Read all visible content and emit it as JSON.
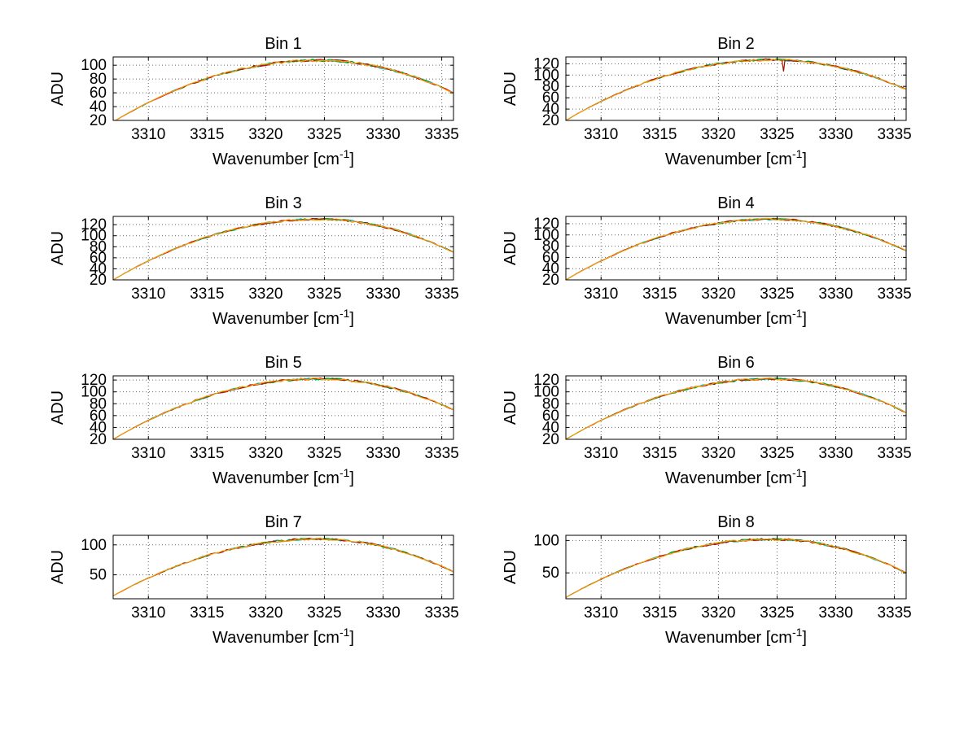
{
  "figure": {
    "background": "#ffffff",
    "axis_color": "#000000",
    "grid_color": "#666666",
    "series_colors": [
      "#303030",
      "#00b7b7",
      "#00a000",
      "#e00000",
      "#ffa000"
    ],
    "noise_adu": 2,
    "ylabel": "ADU",
    "xlabel_main": "Wavenumber [cm",
    "xlabel_sup": "-1",
    "xlabel_close": "]"
  },
  "chart_data": [
    {
      "type": "line",
      "title": "Bin 1",
      "xlabel": "Wavenumber [cm^-1]",
      "ylabel": "ADU",
      "xlim": [
        3307,
        3336
      ],
      "ylim": [
        20,
        112
      ],
      "xticks": [
        3310,
        3315,
        3320,
        3325,
        3330,
        3335
      ],
      "yticks": [
        20,
        40,
        60,
        80,
        100
      ],
      "x": [
        3307,
        3308,
        3309,
        3310,
        3311,
        3312,
        3313,
        3314,
        3315,
        3316,
        3317,
        3318,
        3319,
        3320,
        3321,
        3322,
        3323,
        3324,
        3325,
        3326,
        3327,
        3328,
        3329,
        3330,
        3331,
        3332,
        3333,
        3334,
        3335,
        3336
      ],
      "y": [
        18.0,
        27.9,
        37.2,
        45.9,
        54.0,
        61.6,
        68.6,
        75.0,
        80.8,
        86.0,
        90.7,
        94.7,
        98.2,
        101.1,
        103.4,
        105.2,
        106.3,
        106.9,
        106.9,
        106.2,
        104.8,
        102.6,
        99.8,
        96.2,
        92.0,
        87.0,
        81.3,
        74.9,
        67.8,
        60.0
      ]
    },
    {
      "type": "line",
      "title": "Bin 2",
      "xlabel": "Wavenumber [cm^-1]",
      "ylabel": "ADU",
      "xlim": [
        3307,
        3336
      ],
      "ylim": [
        20,
        132
      ],
      "xticks": [
        3310,
        3315,
        3320,
        3325,
        3330,
        3335
      ],
      "yticks": [
        20,
        40,
        60,
        80,
        100,
        120
      ],
      "spike": {
        "x": 3325.55,
        "depth": 20
      },
      "x": [
        3307,
        3308,
        3309,
        3310,
        3311,
        3312,
        3313,
        3314,
        3315,
        3316,
        3317,
        3318,
        3319,
        3320,
        3321,
        3322,
        3323,
        3324,
        3325,
        3326,
        3327,
        3328,
        3329,
        3330,
        3331,
        3332,
        3333,
        3334,
        3335,
        3336
      ],
      "y": [
        20.0,
        31.9,
        43.1,
        53.5,
        63.2,
        72.4,
        80.9,
        88.5,
        95.5,
        101.7,
        107.4,
        112.2,
        116.4,
        119.9,
        122.7,
        124.9,
        126.1,
        126.9,
        126.9,
        126.1,
        124.6,
        122.1,
        119.0,
        115.0,
        110.4,
        104.8,
        98.6,
        91.5,
        83.6,
        75.0
      ]
    },
    {
      "type": "line",
      "title": "Bin 3",
      "xlabel": "Wavenumber [cm^-1]",
      "ylabel": "ADU",
      "xlim": [
        3307,
        3336
      ],
      "ylim": [
        20,
        135
      ],
      "xticks": [
        3310,
        3315,
        3320,
        3325,
        3330,
        3335
      ],
      "yticks": [
        20,
        40,
        60,
        80,
        100,
        120
      ],
      "x": [
        3307,
        3308,
        3309,
        3310,
        3311,
        3312,
        3313,
        3314,
        3315,
        3316,
        3317,
        3318,
        3319,
        3320,
        3321,
        3322,
        3323,
        3324,
        3325,
        3326,
        3327,
        3328,
        3329,
        3330,
        3331,
        3332,
        3333,
        3334,
        3335,
        3336
      ],
      "y": [
        20.0,
        32.2,
        43.8,
        54.4,
        64.4,
        73.9,
        82.6,
        90.4,
        97.7,
        104.0,
        109.9,
        114.8,
        119.1,
        122.7,
        125.6,
        127.8,
        129.1,
        129.9,
        129.9,
        129.0,
        127.2,
        124.4,
        120.8,
        116.2,
        110.9,
        104.4,
        97.2,
        89.0,
        80.0,
        70.0
      ]
    },
    {
      "type": "line",
      "title": "Bin 4",
      "xlabel": "Wavenumber [cm^-1]",
      "ylabel": "ADU",
      "xlim": [
        3307,
        3336
      ],
      "ylim": [
        20,
        133
      ],
      "xticks": [
        3310,
        3315,
        3320,
        3325,
        3330,
        3335
      ],
      "yticks": [
        20,
        40,
        60,
        80,
        100,
        120
      ],
      "x": [
        3307,
        3308,
        3309,
        3310,
        3311,
        3312,
        3313,
        3314,
        3315,
        3316,
        3317,
        3318,
        3319,
        3320,
        3321,
        3322,
        3323,
        3324,
        3325,
        3326,
        3327,
        3328,
        3329,
        3330,
        3331,
        3332,
        3333,
        3334,
        3335,
        3336
      ],
      "y": [
        20.0,
        32.0,
        43.3,
        53.8,
        63.6,
        72.9,
        81.5,
        89.1,
        96.2,
        102.5,
        108.2,
        113.1,
        117.3,
        120.9,
        123.7,
        125.8,
        127.1,
        127.9,
        127.9,
        127.1,
        125.4,
        122.7,
        119.4,
        115.1,
        110.1,
        104.1,
        97.4,
        89.8,
        81.3,
        72.0
      ]
    },
    {
      "type": "line",
      "title": "Bin 5",
      "xlabel": "Wavenumber [cm^-1]",
      "ylabel": "ADU",
      "xlim": [
        3307,
        3336
      ],
      "ylim": [
        20,
        127
      ],
      "xticks": [
        3310,
        3315,
        3320,
        3325,
        3330,
        3335
      ],
      "yticks": [
        20,
        40,
        60,
        80,
        100,
        120
      ],
      "x": [
        3307,
        3308,
        3309,
        3310,
        3311,
        3312,
        3313,
        3314,
        3315,
        3316,
        3317,
        3318,
        3319,
        3320,
        3321,
        3322,
        3323,
        3324,
        3325,
        3326,
        3327,
        3328,
        3329,
        3330,
        3331,
        3332,
        3333,
        3334,
        3335,
        3336
      ],
      "y": [
        20.0,
        31.3,
        42.0,
        51.9,
        61.2,
        70.0,
        78.0,
        85.3,
        92.0,
        97.9,
        103.3,
        107.9,
        111.9,
        115.3,
        117.9,
        120.0,
        121.2,
        121.9,
        121.9,
        121.1,
        119.6,
        117.1,
        114.0,
        110.0,
        105.4,
        99.8,
        93.6,
        86.5,
        78.6,
        70.0
      ]
    },
    {
      "type": "line",
      "title": "Bin 6",
      "xlabel": "Wavenumber [cm^-1]",
      "ylabel": "ADU",
      "xlim": [
        3307,
        3336
      ],
      "ylim": [
        20,
        127
      ],
      "xticks": [
        3310,
        3315,
        3320,
        3325,
        3330,
        3335
      ],
      "yticks": [
        20,
        40,
        60,
        80,
        100,
        120
      ],
      "x": [
        3307,
        3308,
        3309,
        3310,
        3311,
        3312,
        3313,
        3314,
        3315,
        3316,
        3317,
        3318,
        3319,
        3320,
        3321,
        3322,
        3323,
        3324,
        3325,
        3326,
        3327,
        3328,
        3329,
        3330,
        3331,
        3332,
        3333,
        3334,
        3335,
        3336
      ],
      "y": [
        20.0,
        31.3,
        42.0,
        51.9,
        61.2,
        70.0,
        78.0,
        85.3,
        92.0,
        97.9,
        103.3,
        107.9,
        111.9,
        115.3,
        117.9,
        120.0,
        121.2,
        121.9,
        121.9,
        121.0,
        119.3,
        116.6,
        113.3,
        108.9,
        103.8,
        97.7,
        90.8,
        83.1,
        74.5,
        65.0
      ]
    },
    {
      "type": "line",
      "title": "Bin 7",
      "xlabel": "Wavenumber [cm^-1]",
      "ylabel": "ADU",
      "xlim": [
        3307,
        3336
      ],
      "ylim": [
        10,
        116
      ],
      "xticks": [
        3310,
        3315,
        3320,
        3325,
        3330,
        3335
      ],
      "yticks": [
        50,
        100
      ],
      "x": [
        3307,
        3308,
        3309,
        3310,
        3311,
        3312,
        3313,
        3314,
        3315,
        3316,
        3317,
        3318,
        3319,
        3320,
        3321,
        3322,
        3323,
        3324,
        3325,
        3326,
        3327,
        3328,
        3329,
        3330,
        3331,
        3332,
        3333,
        3334,
        3335,
        3336
      ],
      "y": [
        15.0,
        25.5,
        35.5,
        44.7,
        53.4,
        61.6,
        69.1,
        75.8,
        82.1,
        87.6,
        92.6,
        96.9,
        100.6,
        103.7,
        106.2,
        108.1,
        109.2,
        109.9,
        109.9,
        109.1,
        107.4,
        104.8,
        101.6,
        97.4,
        92.5,
        86.6,
        79.9,
        72.4,
        64.1,
        55.0
      ]
    },
    {
      "type": "line",
      "title": "Bin 8",
      "xlabel": "Wavenumber [cm^-1]",
      "ylabel": "ADU",
      "xlim": [
        3307,
        3336
      ],
      "ylim": [
        10,
        108
      ],
      "xticks": [
        3310,
        3315,
        3320,
        3325,
        3330,
        3335
      ],
      "yticks": [
        50,
        100
      ],
      "x": [
        3307,
        3308,
        3309,
        3310,
        3311,
        3312,
        3313,
        3314,
        3315,
        3316,
        3317,
        3318,
        3319,
        3320,
        3321,
        3322,
        3323,
        3324,
        3325,
        3326,
        3327,
        3328,
        3329,
        3330,
        3331,
        3332,
        3333,
        3334,
        3335,
        3336
      ],
      "y": [
        12.0,
        22.0,
        31.4,
        40.2,
        48.4,
        56.1,
        63.2,
        69.6,
        75.5,
        80.8,
        85.5,
        89.6,
        93.1,
        96.1,
        98.4,
        100.2,
        101.3,
        101.9,
        101.9,
        101.1,
        99.6,
        97.1,
        94.0,
        90.0,
        85.4,
        79.8,
        73.6,
        66.5,
        58.6,
        50.0
      ]
    }
  ]
}
